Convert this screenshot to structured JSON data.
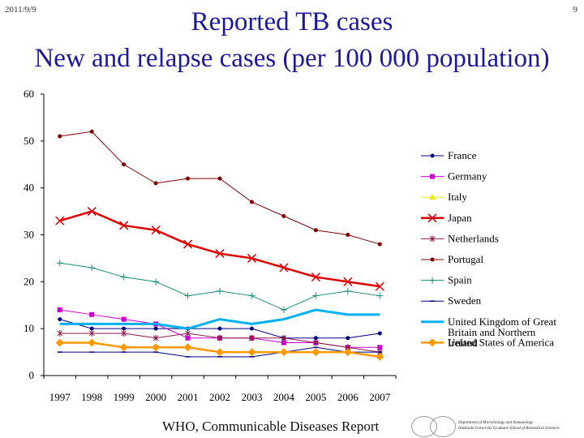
{
  "header": {
    "date": "2011/9/9",
    "page_number": "9"
  },
  "title_line1": "Reported TB cases",
  "title_line2": "New and relapse cases (per 100 000 population)",
  "footer": {
    "source": "WHO, Communicable Diseases Report",
    "department_line1": "Department of Microbiology and Immunology",
    "department_line2": "Hokkaido University Graduate School of Biomedical Sciences"
  },
  "chart_data": {
    "type": "line",
    "title": "Reported TB cases New and relapse cases (per 100 000 population)",
    "x": [
      1997,
      1998,
      1999,
      2000,
      2001,
      2002,
      2003,
      2004,
      2005,
      2006,
      2007
    ],
    "ylim": [
      0,
      60
    ],
    "yticks": [
      0,
      10,
      20,
      30,
      40,
      50,
      60
    ],
    "legend_position": "right",
    "grid": false,
    "series": [
      {
        "name": "France",
        "color": "#000080",
        "marker": "circle",
        "values": [
          12,
          10,
          10,
          10,
          10,
          10,
          10,
          8,
          8,
          8,
          9
        ]
      },
      {
        "name": "Germany",
        "color": "#cc00cc",
        "marker": "square",
        "values": [
          14,
          13,
          12,
          11,
          8,
          8,
          8,
          7,
          7,
          6,
          6
        ]
      },
      {
        "name": "Italy",
        "color": "#e8e800",
        "marker": "triangle",
        "values": [
          null,
          null,
          null,
          null,
          null,
          null,
          null,
          null,
          null,
          null,
          null
        ]
      },
      {
        "name": "Japan",
        "color": "#dd0000",
        "marker": "x",
        "values": [
          33,
          35,
          32,
          31,
          28,
          26,
          25,
          23,
          21,
          20,
          19
        ]
      },
      {
        "name": "Netherlands",
        "color": "#8b1a4a",
        "marker": "star",
        "values": [
          9,
          9,
          9,
          8,
          9,
          8,
          8,
          8,
          7,
          6,
          5
        ]
      },
      {
        "name": "Portugal",
        "color": "#800000",
        "marker": "circle",
        "values": [
          51,
          52,
          45,
          41,
          42,
          42,
          37,
          34,
          31,
          30,
          28
        ]
      },
      {
        "name": "Spain",
        "color": "#1a8a7a",
        "marker": "plus",
        "values": [
          24,
          23,
          21,
          20,
          17,
          18,
          17,
          14,
          17,
          18,
          17
        ]
      },
      {
        "name": "Sweden",
        "color": "#000080",
        "marker": "dash",
        "values": [
          5,
          5,
          5,
          5,
          4,
          4,
          4,
          5,
          6,
          5,
          5
        ]
      },
      {
        "name": "United Kingdom of Great Britain and Northern Ireland",
        "color": "#00b0f0",
        "marker": "none",
        "values": [
          11,
          11,
          11,
          11,
          10,
          12,
          11,
          12,
          14,
          13,
          13
        ]
      },
      {
        "name": "United States of America",
        "color": "#ff9900",
        "marker": "diamond",
        "values": [
          7,
          7,
          6,
          6,
          6,
          5,
          5,
          5,
          5,
          5,
          4
        ]
      }
    ]
  }
}
